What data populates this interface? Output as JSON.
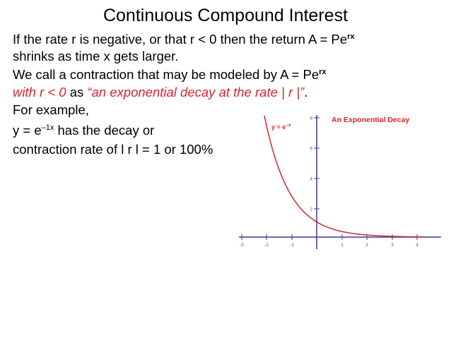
{
  "slide": {
    "title": "Continuous Compound Interest",
    "line1": {
      "text": "If the rate r is negative, or that r < 0 then the return A = Pe",
      "sup": "rx"
    },
    "line2": "shrinks as time x gets larger.",
    "line3": {
      "text": "We call a contraction that may be modeled by A = Pe",
      "sup": "rx"
    },
    "line4": {
      "part1": "with r < 0",
      "part2": " as ",
      "part3": "“an exponential decay at the rate | r |”",
      "part4": "."
    },
    "line5": "For example,",
    "line6": {
      "pre": "y = e",
      "sup": "–1x",
      "post": " has the decay or"
    },
    "line7": "contraction rate of l r l = 1 or 100%"
  },
  "graph": {
    "curve_label": "y = e",
    "curve_label_sup": "–x",
    "title": "An Exponential Decay",
    "x_ticks": [
      "-3",
      "-2",
      "-1",
      "1",
      "2",
      "3",
      "4"
    ],
    "y_ticks": [
      "2",
      "4",
      "6",
      "8"
    ],
    "curve_color": "#d3262b",
    "axis_color": "#3a3a9a"
  }
}
